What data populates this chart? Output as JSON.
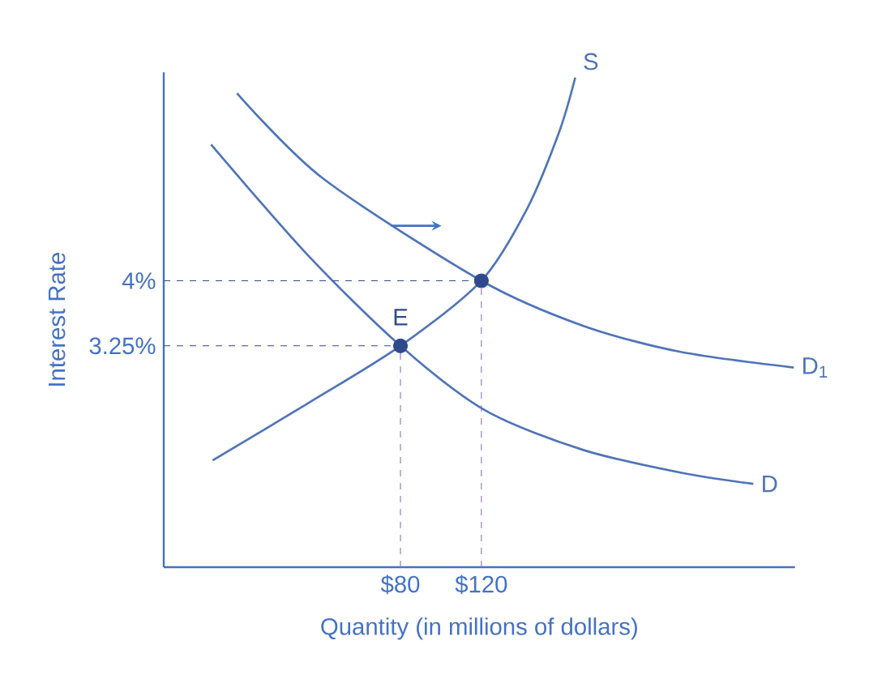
{
  "chart_data": {
    "type": "line",
    "xlabel": "Quantity (in millions of dollars)",
    "ylabel": "Interest Rate",
    "xlim": [
      -37,
      275
    ],
    "ylim": [
      0.7,
      6.4
    ],
    "xticks": [
      {
        "value": 80,
        "label": "$80"
      },
      {
        "value": 120,
        "label": "$120"
      }
    ],
    "yticks": [
      {
        "value": 3.25,
        "label": "3.25%"
      },
      {
        "value": 4,
        "label": "4%"
      }
    ],
    "line_style": "solid",
    "series": [
      {
        "name": "S",
        "color": "#4f74b8",
        "x": [
          -12.8,
          34.4,
          80,
          120,
          142.4,
          158.4,
          166.4
        ],
        "values": [
          1.93,
          2.59,
          3.25,
          4.0,
          4.82,
          5.71,
          6.34
        ]
      },
      {
        "name": "D",
        "color": "#4f74b8",
        "x": [
          -13.6,
          34.4,
          80,
          122.4,
          170.4,
          218.4,
          254.4
        ],
        "values": [
          5.57,
          4.29,
          3.25,
          2.5,
          2.05,
          1.79,
          1.66
        ]
      },
      {
        "name": "D$_{1}$",
        "color": "#4f74b8",
        "x": [
          -0.8,
          41.6,
          120,
          170.4,
          218.4,
          274.4
        ],
        "values": [
          6.16,
          5.18,
          4.0,
          3.48,
          3.18,
          3.0
        ]
      },
      {
        "type": "scatter",
        "color": "#2f4a8c",
        "x": [
          80,
          120
        ],
        "values": [
          3.25,
          4.0
        ]
      }
    ],
    "ref_lines": [
      {
        "axis": "y",
        "value": 4,
        "color": "#2f4a8c",
        "line_style": "dashed"
      },
      {
        "axis": "y",
        "value": 3.25,
        "color": "#2f4a8c",
        "line_style": "dashed"
      },
      {
        "axis": "x",
        "value": 120,
        "color": "#8e6fb0",
        "line_style": "dashed"
      },
      {
        "axis": "x",
        "value": 80,
        "color": "#8e6fb0",
        "line_style": "dashed"
      }
    ],
    "annotations": [
      {
        "text": "E",
        "x": 80,
        "y": 3.25
      }
    ]
  }
}
